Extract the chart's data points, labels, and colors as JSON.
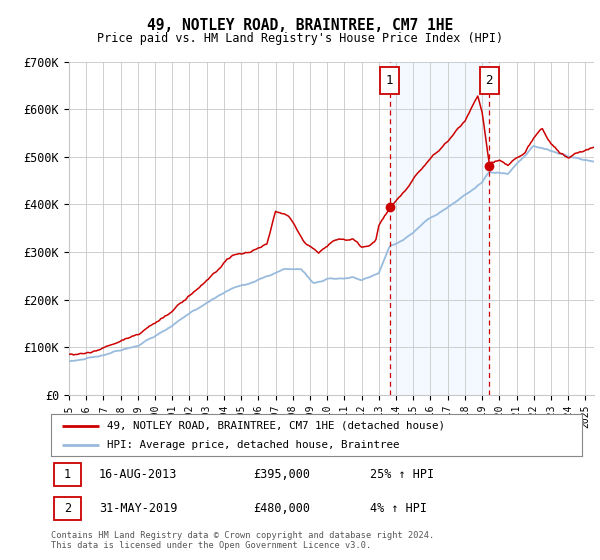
{
  "title": "49, NOTLEY ROAD, BRAINTREE, CM7 1HE",
  "subtitle": "Price paid vs. HM Land Registry's House Price Index (HPI)",
  "red_label": "49, NOTLEY ROAD, BRAINTREE, CM7 1HE (detached house)",
  "blue_label": "HPI: Average price, detached house, Braintree",
  "sale1_date": "16-AUG-2013",
  "sale1_price": 395000,
  "sale1_pct": "25%",
  "sale2_date": "31-MAY-2019",
  "sale2_price": 480000,
  "sale2_pct": "4%",
  "footer": "Contains HM Land Registry data © Crown copyright and database right 2024.\nThis data is licensed under the Open Government Licence v3.0.",
  "sale1_x": 2013.62,
  "sale2_x": 2019.41,
  "ylim": [
    0,
    700000
  ],
  "xlim": [
    1995.0,
    2025.5
  ],
  "yticks": [
    0,
    100000,
    200000,
    300000,
    400000,
    500000,
    600000,
    700000
  ],
  "ytick_labels": [
    "£0",
    "£100K",
    "£200K",
    "£300K",
    "£400K",
    "£500K",
    "£600K",
    "£700K"
  ],
  "bg_color": "#ffffff",
  "grid_color": "#c8c8c8",
  "red_color": "#cc0000",
  "blue_color": "#99bbdd",
  "shade_color": "#ddeeff",
  "marker_box_color": "#cc0000",
  "shade_alpha": 0.35
}
